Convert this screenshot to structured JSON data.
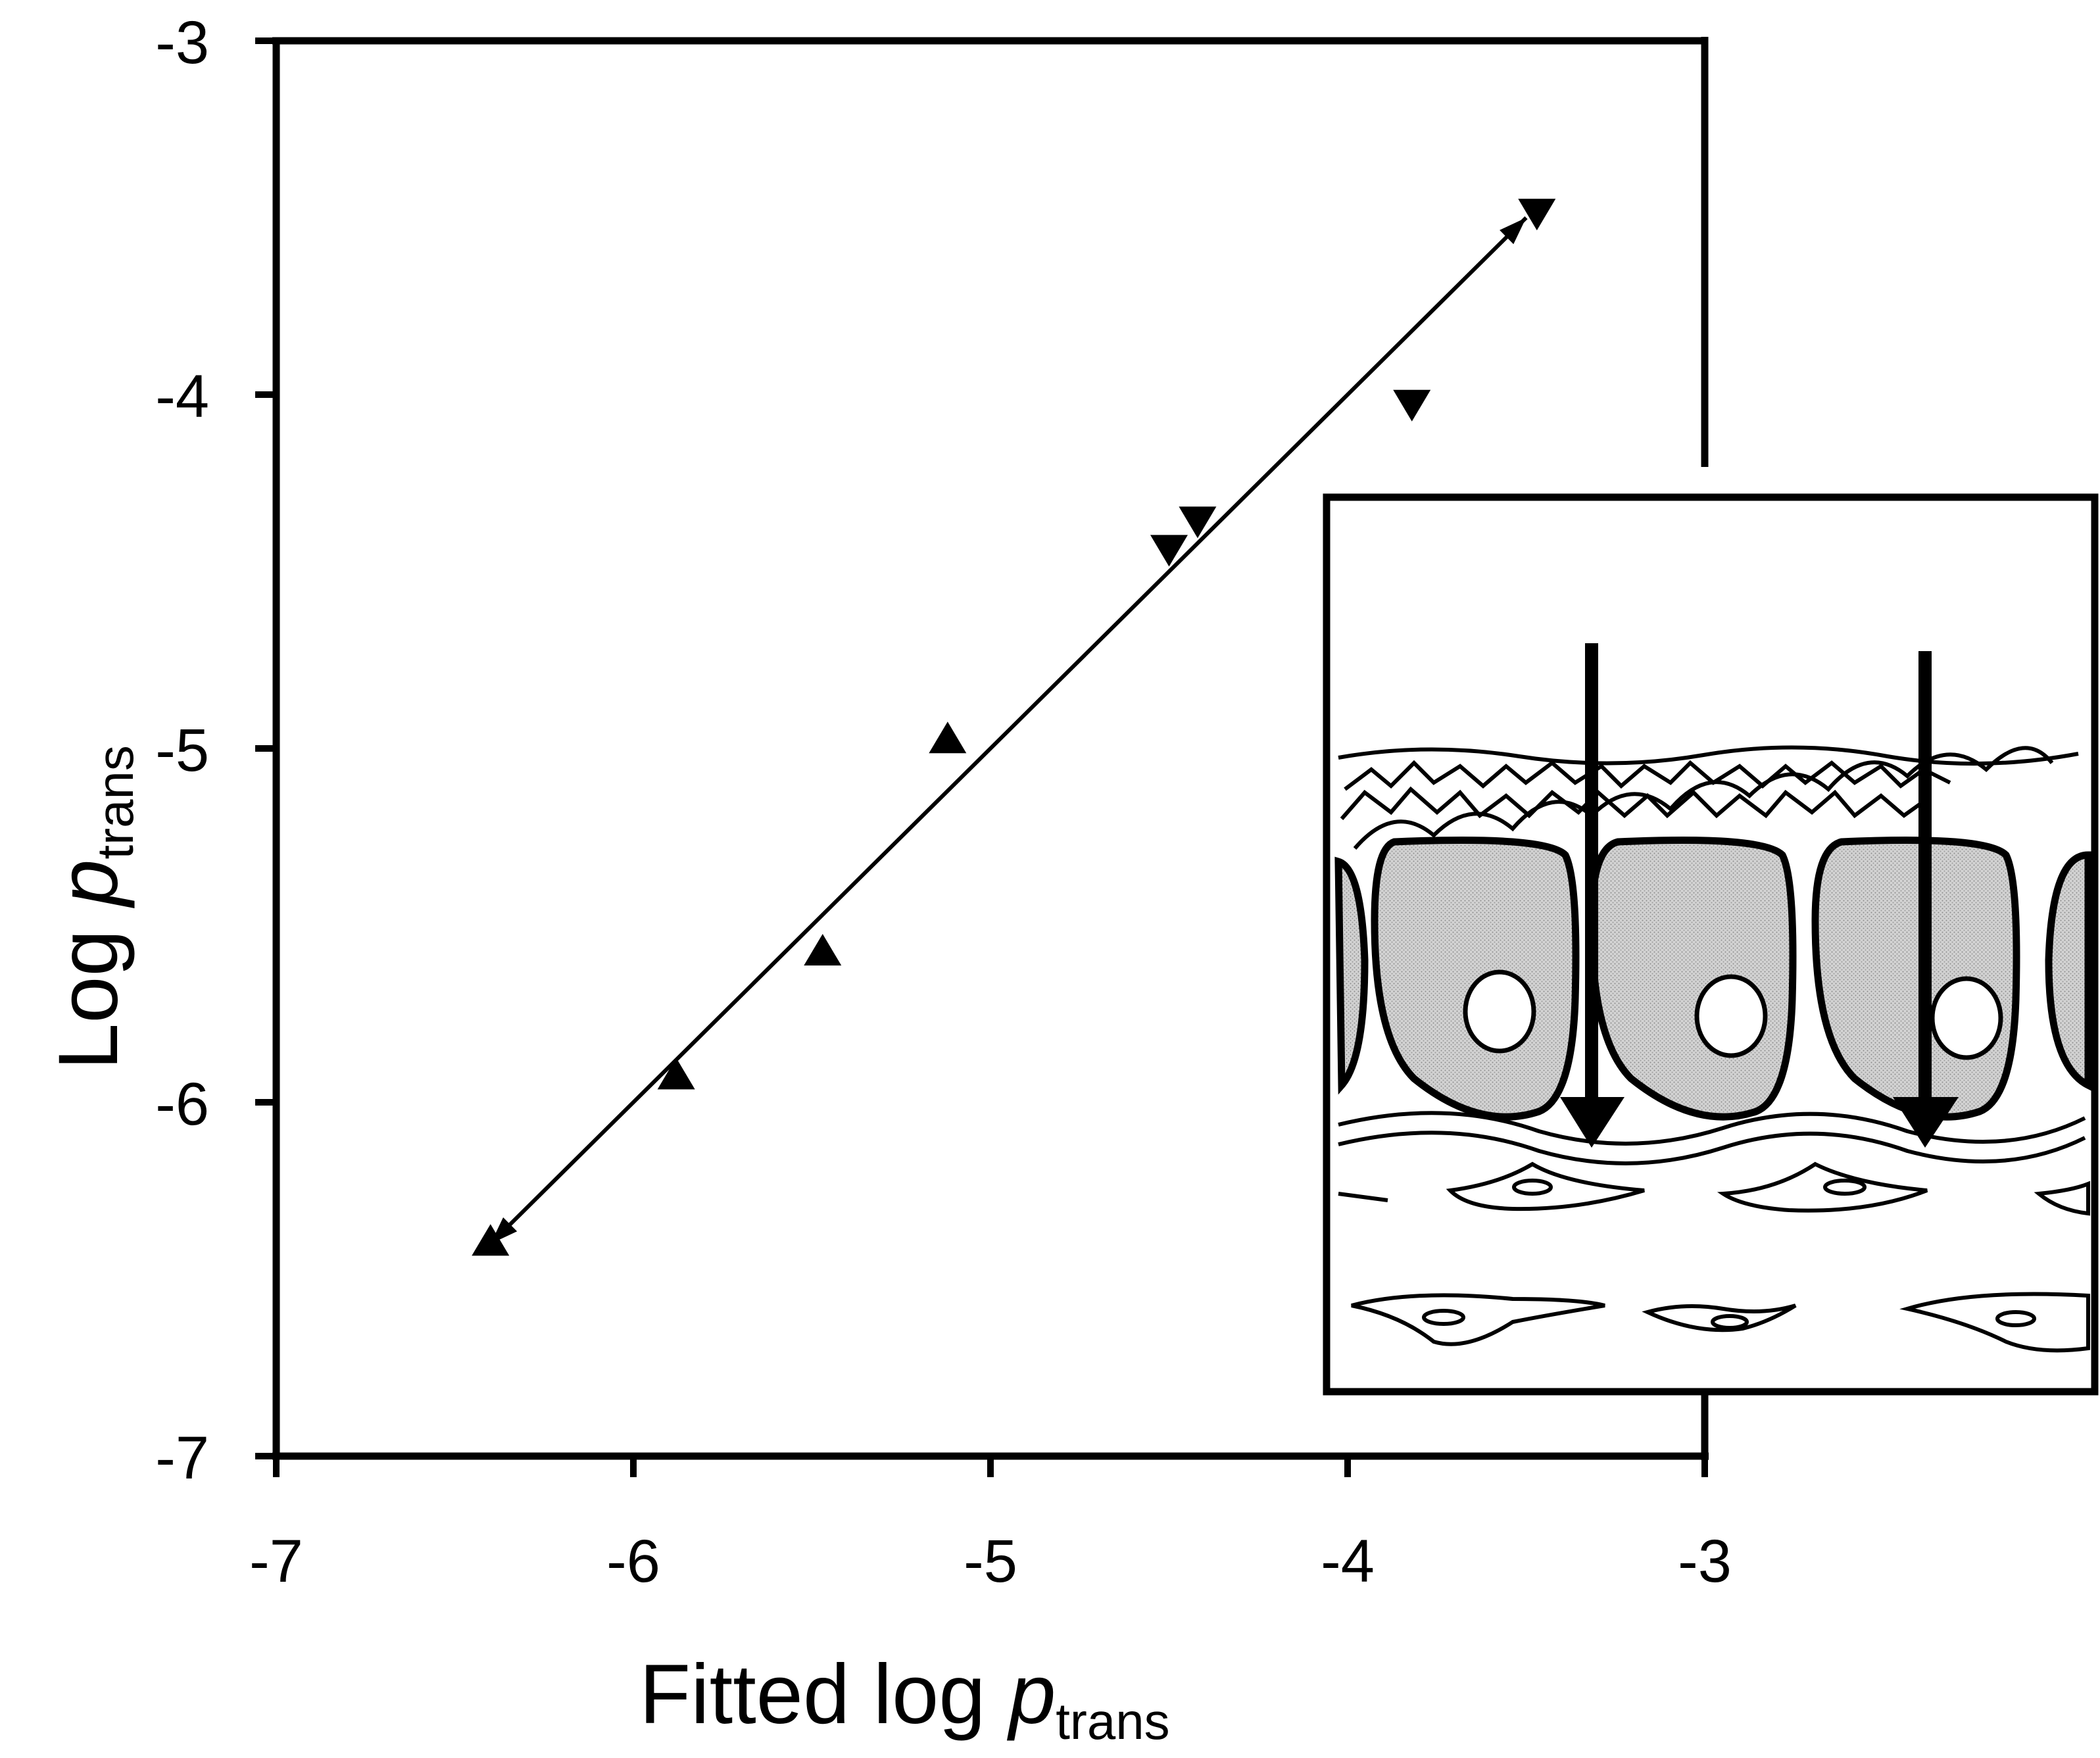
{
  "chart_data": {
    "type": "scatter",
    "xlabel": {
      "prefix": "Fitted log ",
      "var": "p",
      "sub": "trans"
    },
    "ylabel": {
      "prefix": "Log ",
      "var": "p",
      "sub": "trans"
    },
    "xlim": [
      -7,
      -3
    ],
    "ylim": [
      -7,
      -3
    ],
    "x_ticks": [
      -7,
      -6,
      -5,
      -4,
      -3
    ],
    "y_ticks": [
      -3,
      -4,
      -5,
      -6,
      -7
    ],
    "x_tick_labels": [
      "-7",
      "-6",
      "-5",
      "-4",
      "-3"
    ],
    "y_tick_labels": [
      "-3",
      "-4",
      "-5",
      "-6",
      "-7"
    ],
    "grid": false,
    "legend": "none",
    "series": [
      {
        "marker": "triangle-up",
        "points": [
          {
            "x": -6.4,
            "y": -6.4
          },
          {
            "x": -5.88,
            "y": -5.93
          },
          {
            "x": -5.47,
            "y": -5.58
          },
          {
            "x": -5.12,
            "y": -4.98
          }
        ]
      },
      {
        "marker": "triangle-down",
        "points": [
          {
            "x": -4.5,
            "y": -4.43
          },
          {
            "x": -4.42,
            "y": -4.35
          },
          {
            "x": -3.82,
            "y": -4.02
          },
          {
            "x": -3.47,
            "y": -3.48
          }
        ]
      }
    ],
    "fit_line": {
      "from": {
        "x": -6.4,
        "y": -6.4
      },
      "to": {
        "x": -3.5,
        "y": -3.5
      },
      "arrowheads": "both"
    },
    "inset": {
      "content": "tissue-cross-section-diagram",
      "arrows": 2,
      "arrow_direction": "down"
    }
  }
}
